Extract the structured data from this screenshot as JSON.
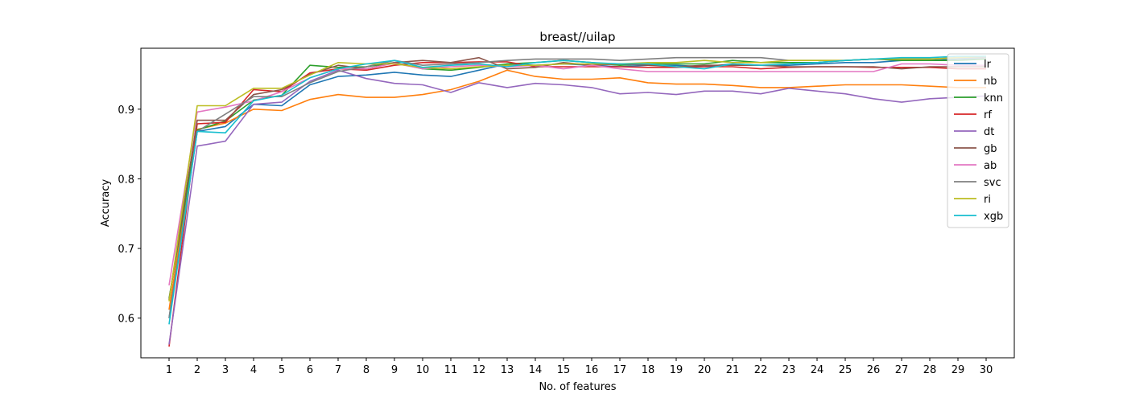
{
  "chart_data": {
    "type": "line",
    "title": "breast//uilap",
    "xlabel": "No. of features",
    "ylabel": "Accuracy",
    "x": [
      1,
      2,
      3,
      4,
      5,
      6,
      7,
      8,
      9,
      10,
      11,
      12,
      13,
      14,
      15,
      16,
      17,
      18,
      19,
      20,
      21,
      22,
      23,
      24,
      25,
      26,
      27,
      28,
      29,
      30
    ],
    "xlim": [
      0,
      31
    ],
    "ylim": [
      0.543,
      0.9875
    ],
    "yticks": [
      0.6,
      0.7,
      0.8,
      0.9
    ],
    "grid": false,
    "legend_position": "top-right",
    "series": [
      {
        "name": "lr",
        "color": "#1f77b4",
        "values": [
          0.6,
          0.868,
          0.875,
          0.907,
          0.905,
          0.935,
          0.947,
          0.949,
          0.953,
          0.949,
          0.947,
          0.956,
          0.965,
          0.963,
          0.965,
          0.963,
          0.961,
          0.963,
          0.963,
          0.961,
          0.965,
          0.963,
          0.963,
          0.965,
          0.967,
          0.967,
          0.97,
          0.97,
          0.972,
          0.972
        ]
      },
      {
        "name": "nb",
        "color": "#ff7f0e",
        "values": [
          0.612,
          0.871,
          0.88,
          0.9,
          0.898,
          0.914,
          0.921,
          0.917,
          0.917,
          0.921,
          0.928,
          0.94,
          0.956,
          0.947,
          0.943,
          0.943,
          0.945,
          0.938,
          0.936,
          0.936,
          0.934,
          0.931,
          0.931,
          0.933,
          0.935,
          0.935,
          0.935,
          0.933,
          0.931,
          0.931
        ]
      },
      {
        "name": "knn",
        "color": "#2ca02c",
        "values": [
          0.628,
          0.87,
          0.883,
          0.913,
          0.92,
          0.963,
          0.96,
          0.961,
          0.967,
          0.958,
          0.956,
          0.96,
          0.965,
          0.967,
          0.97,
          0.967,
          0.963,
          0.965,
          0.965,
          0.965,
          0.97,
          0.967,
          0.967,
          0.967,
          0.97,
          0.972,
          0.97,
          0.97,
          0.97,
          0.972
        ]
      },
      {
        "name": "rf",
        "color": "#d62728",
        "values": [
          0.559,
          0.879,
          0.881,
          0.928,
          0.925,
          0.952,
          0.958,
          0.956,
          0.963,
          0.967,
          0.967,
          0.968,
          0.968,
          0.961,
          0.961,
          0.961,
          0.961,
          0.96,
          0.96,
          0.961,
          0.961,
          0.958,
          0.96,
          0.961,
          0.961,
          0.96,
          0.96,
          0.96,
          0.958,
          0.958
        ]
      },
      {
        "name": "dt",
        "color": "#9467bd",
        "values": [
          0.562,
          0.847,
          0.854,
          0.907,
          0.91,
          0.94,
          0.956,
          0.944,
          0.937,
          0.935,
          0.924,
          0.938,
          0.931,
          0.937,
          0.935,
          0.931,
          0.922,
          0.924,
          0.921,
          0.926,
          0.926,
          0.922,
          0.93,
          0.926,
          0.922,
          0.915,
          0.91,
          0.915,
          0.917,
          0.919
        ]
      },
      {
        "name": "gb",
        "color": "#8c564b",
        "values": [
          0.626,
          0.884,
          0.884,
          0.921,
          0.928,
          0.95,
          0.963,
          0.958,
          0.967,
          0.97,
          0.967,
          0.974,
          0.958,
          0.96,
          0.967,
          0.963,
          0.965,
          0.963,
          0.961,
          0.963,
          0.963,
          0.963,
          0.961,
          0.961,
          0.961,
          0.961,
          0.958,
          0.961,
          0.961,
          0.961
        ]
      },
      {
        "name": "ab",
        "color": "#e377c2",
        "values": [
          0.647,
          0.896,
          0.903,
          0.912,
          0.925,
          0.945,
          0.958,
          0.958,
          0.966,
          0.958,
          0.961,
          0.963,
          0.961,
          0.963,
          0.958,
          0.963,
          0.958,
          0.954,
          0.954,
          0.954,
          0.954,
          0.954,
          0.954,
          0.954,
          0.954,
          0.954,
          0.965,
          0.965,
          0.963,
          0.963
        ]
      },
      {
        "name": "svc",
        "color": "#7f7f7f",
        "values": [
          0.6,
          0.868,
          0.893,
          0.918,
          0.918,
          0.938,
          0.954,
          0.961,
          0.97,
          0.963,
          0.965,
          0.967,
          0.97,
          0.972,
          0.972,
          0.972,
          0.97,
          0.972,
          0.974,
          0.974,
          0.974,
          0.974,
          0.97,
          0.97,
          0.97,
          0.972,
          0.972,
          0.972,
          0.974,
          0.974
        ]
      },
      {
        "name": "ri",
        "color": "#bcbd22",
        "values": [
          0.624,
          0.905,
          0.905,
          0.93,
          0.93,
          0.949,
          0.967,
          0.965,
          0.965,
          0.96,
          0.958,
          0.961,
          0.963,
          0.963,
          0.965,
          0.965,
          0.965,
          0.967,
          0.967,
          0.97,
          0.967,
          0.967,
          0.97,
          0.97,
          0.97,
          0.972,
          0.972,
          0.972,
          0.974,
          0.976
        ]
      },
      {
        "name": "xgb",
        "color": "#17becf",
        "values": [
          0.591,
          0.868,
          0.866,
          0.912,
          0.92,
          0.945,
          0.958,
          0.965,
          0.97,
          0.96,
          0.963,
          0.965,
          0.961,
          0.967,
          0.97,
          0.967,
          0.965,
          0.965,
          0.961,
          0.958,
          0.965,
          0.963,
          0.965,
          0.967,
          0.97,
          0.972,
          0.974,
          0.974,
          0.976,
          0.976
        ]
      }
    ]
  }
}
